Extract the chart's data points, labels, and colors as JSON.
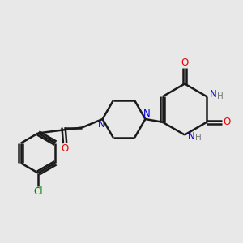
{
  "background_color": "#e8e8e8",
  "bond_color": "#1a1a1a",
  "N_color": "#0000ee",
  "O_color": "#ee0000",
  "Cl_color": "#008800",
  "H_color": "#777777",
  "line_width": 1.8,
  "figsize": [
    3.0,
    3.0
  ],
  "dpi": 100,
  "xlim": [
    0.0,
    10.0
  ],
  "ylim": [
    1.5,
    9.5
  ]
}
